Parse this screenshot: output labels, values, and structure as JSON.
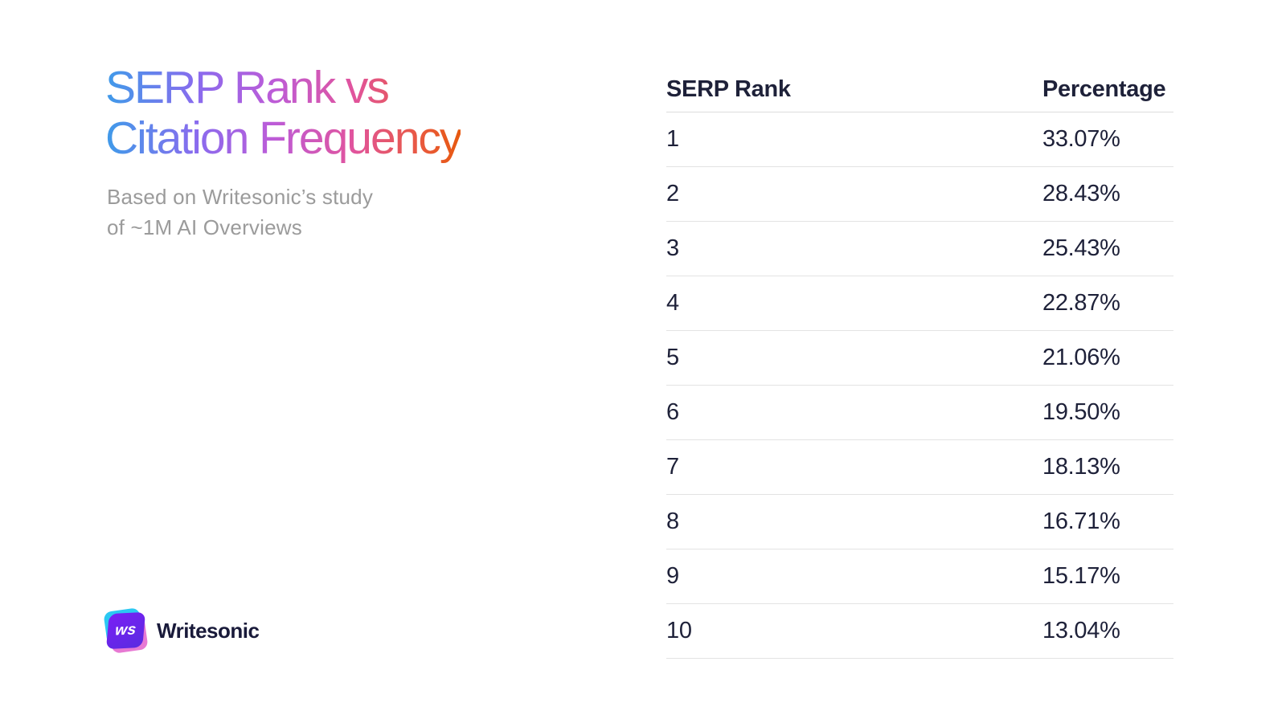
{
  "hero": {
    "title_line1": "SERP Rank vs",
    "title_line2": "Citation Frequency",
    "subtitle_line1": "Based on Writesonic’s study",
    "subtitle_line2": "of ~1M AI Overviews",
    "title_gradient_colors": [
      "#3F9BE9",
      "#8A6BEE",
      "#BC5CD8",
      "#E1549D",
      "#E95938",
      "#E7590F"
    ],
    "subtitle_color": "#9B9B9B"
  },
  "brand": {
    "icon_text": "ws",
    "name": "Writesonic",
    "icon_colors": {
      "cyan": "#2BC8F2",
      "pink": "#E779D3",
      "purple_start": "#7A1FF5",
      "purple_end": "#5A2BE0"
    },
    "name_color": "#191A3A"
  },
  "table": {
    "header": {
      "rank": "SERP Rank",
      "percentage": "Percentage"
    },
    "rows": [
      {
        "rank": "1",
        "percentage": "33.07%"
      },
      {
        "rank": "2",
        "percentage": "28.43%"
      },
      {
        "rank": "3",
        "percentage": "25.43%"
      },
      {
        "rank": "4",
        "percentage": "22.87%"
      },
      {
        "rank": "5",
        "percentage": "21.06%"
      },
      {
        "rank": "6",
        "percentage": "19.50%"
      },
      {
        "rank": "7",
        "percentage": "18.13%"
      },
      {
        "rank": "8",
        "percentage": "16.71%"
      },
      {
        "rank": "9",
        "percentage": "15.17%"
      },
      {
        "rank": "10",
        "percentage": "13.04%"
      }
    ],
    "text_color": "#1E2139",
    "divider_color": "#E3E3E3"
  },
  "chart_data": {
    "type": "table",
    "title": "SERP Rank vs Citation Frequency",
    "subtitle": "Based on Writesonic’s study of ~1M AI Overviews",
    "columns": [
      "SERP Rank",
      "Percentage"
    ],
    "categories": [
      1,
      2,
      3,
      4,
      5,
      6,
      7,
      8,
      9,
      10
    ],
    "values": [
      33.07,
      28.43,
      25.43,
      22.87,
      21.06,
      19.5,
      18.13,
      16.71,
      15.17,
      13.04
    ],
    "unit": "%"
  }
}
